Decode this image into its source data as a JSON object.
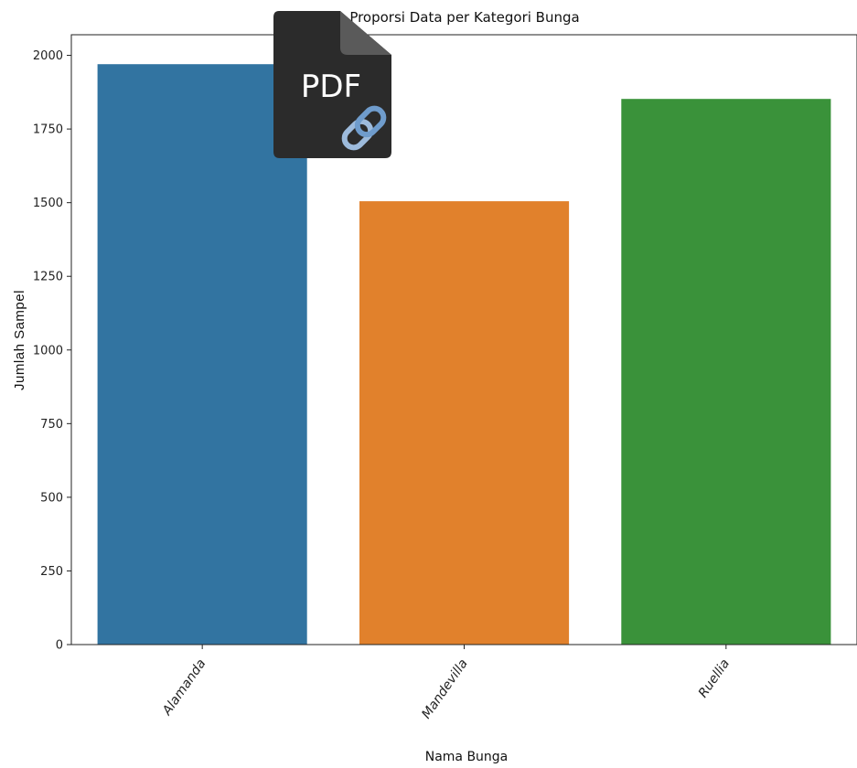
{
  "chart_data": {
    "type": "bar",
    "title": "Proporsi Data per Kategori Bunga",
    "xlabel": "Nama Bunga",
    "ylabel": "Jumlah Sampel",
    "categories": [
      "Alamanda",
      "Mandevilla",
      "Ruellia"
    ],
    "values": [
      1970,
      1505,
      1852
    ],
    "colors": [
      "#3274a1",
      "#e1812c",
      "#3a923a"
    ],
    "ylim": [
      0,
      2070
    ],
    "yticks": [
      0,
      250,
      500,
      750,
      1000,
      1250,
      1500,
      1750,
      2000
    ],
    "grid": false
  },
  "overlay": {
    "icon": "pdf-link-icon",
    "label": "PDF",
    "color": "#2b2b2b",
    "link_color": "#7ba7d4"
  }
}
